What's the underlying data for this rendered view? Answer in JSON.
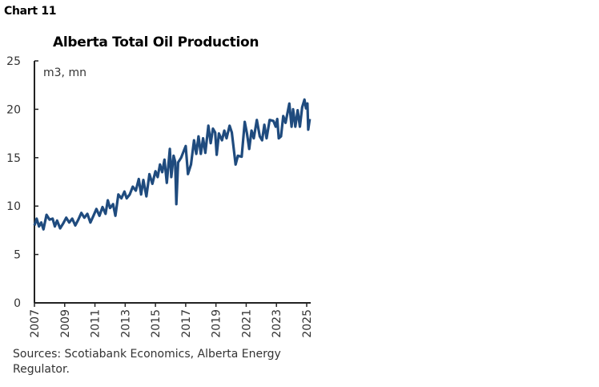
{
  "header": {
    "chart_label": "Chart 11"
  },
  "source": "Sources: Scotiabank Economics, Alberta Energy Regulator.",
  "colors": {
    "line": "#1f4b7e",
    "axis": "#222222"
  },
  "chart_data": {
    "type": "line",
    "title": "Alberta Total Oil Production",
    "unit_label": "m3, mn",
    "xlabel": "",
    "ylabel": "",
    "xlim": [
      2007,
      2025
    ],
    "ylim": [
      0,
      25
    ],
    "x_ticks": [
      "2007",
      "2009",
      "2011",
      "2013",
      "2015",
      "2017",
      "2019",
      "2021",
      "2023",
      "2025"
    ],
    "y_ticks": [
      "0",
      "5",
      "10",
      "15",
      "20",
      "25"
    ],
    "grid": false,
    "legend": "none",
    "series": [
      {
        "points": [
          [
            2007.0,
            8.0
          ],
          [
            2007.15,
            8.7
          ],
          [
            2007.3,
            7.9
          ],
          [
            2007.45,
            8.3
          ],
          [
            2007.6,
            7.6
          ],
          [
            2007.8,
            9.1
          ],
          [
            2008.0,
            8.6
          ],
          [
            2008.2,
            8.7
          ],
          [
            2008.35,
            7.9
          ],
          [
            2008.5,
            8.5
          ],
          [
            2008.7,
            7.7
          ],
          [
            2008.9,
            8.2
          ],
          [
            2009.1,
            8.8
          ],
          [
            2009.3,
            8.3
          ],
          [
            2009.5,
            8.7
          ],
          [
            2009.7,
            8.0
          ],
          [
            2009.9,
            8.6
          ],
          [
            2010.1,
            9.3
          ],
          [
            2010.3,
            8.8
          ],
          [
            2010.5,
            9.2
          ],
          [
            2010.7,
            8.3
          ],
          [
            2010.9,
            9.0
          ],
          [
            2011.1,
            9.7
          ],
          [
            2011.3,
            9.0
          ],
          [
            2011.5,
            9.9
          ],
          [
            2011.7,
            9.2
          ],
          [
            2011.85,
            10.6
          ],
          [
            2012.0,
            9.8
          ],
          [
            2012.2,
            10.2
          ],
          [
            2012.35,
            9.0
          ],
          [
            2012.55,
            11.2
          ],
          [
            2012.75,
            10.8
          ],
          [
            2012.95,
            11.5
          ],
          [
            2013.1,
            10.8
          ],
          [
            2013.3,
            11.2
          ],
          [
            2013.5,
            12.0
          ],
          [
            2013.7,
            11.6
          ],
          [
            2013.9,
            12.8
          ],
          [
            2014.05,
            11.2
          ],
          [
            2014.2,
            12.7
          ],
          [
            2014.4,
            11.0
          ],
          [
            2014.6,
            13.3
          ],
          [
            2014.8,
            12.3
          ],
          [
            2015.0,
            13.6
          ],
          [
            2015.15,
            13.0
          ],
          [
            2015.3,
            14.3
          ],
          [
            2015.45,
            13.5
          ],
          [
            2015.6,
            14.8
          ],
          [
            2015.75,
            12.4
          ],
          [
            2015.95,
            15.9
          ],
          [
            2016.05,
            13.0
          ],
          [
            2016.2,
            15.2
          ],
          [
            2016.3,
            14.6
          ],
          [
            2016.38,
            10.2
          ],
          [
            2016.5,
            14.5
          ],
          [
            2016.7,
            15.0
          ],
          [
            2016.9,
            15.8
          ],
          [
            2017.0,
            16.2
          ],
          [
            2017.15,
            13.3
          ],
          [
            2017.35,
            14.3
          ],
          [
            2017.55,
            16.8
          ],
          [
            2017.7,
            15.4
          ],
          [
            2017.85,
            17.2
          ],
          [
            2018.0,
            15.4
          ],
          [
            2018.15,
            17.0
          ],
          [
            2018.3,
            15.5
          ],
          [
            2018.5,
            18.3
          ],
          [
            2018.65,
            16.5
          ],
          [
            2018.8,
            18.0
          ],
          [
            2018.95,
            17.6
          ],
          [
            2019.05,
            15.3
          ],
          [
            2019.2,
            17.5
          ],
          [
            2019.4,
            16.8
          ],
          [
            2019.55,
            17.8
          ],
          [
            2019.7,
            17.0
          ],
          [
            2019.9,
            18.3
          ],
          [
            2020.05,
            17.6
          ],
          [
            2020.3,
            14.3
          ],
          [
            2020.45,
            15.2
          ],
          [
            2020.7,
            15.1
          ],
          [
            2020.9,
            18.7
          ],
          [
            2021.05,
            17.5
          ],
          [
            2021.2,
            15.9
          ],
          [
            2021.35,
            17.8
          ],
          [
            2021.5,
            17.0
          ],
          [
            2021.7,
            18.9
          ],
          [
            2021.9,
            17.2
          ],
          [
            2022.05,
            16.8
          ],
          [
            2022.2,
            18.4
          ],
          [
            2022.35,
            17.0
          ],
          [
            2022.55,
            18.9
          ],
          [
            2022.8,
            18.8
          ],
          [
            2022.95,
            18.2
          ],
          [
            2023.05,
            19.0
          ],
          [
            2023.15,
            17.0
          ],
          [
            2023.3,
            17.2
          ],
          [
            2023.45,
            19.3
          ],
          [
            2023.6,
            18.6
          ],
          [
            2023.85,
            20.6
          ],
          [
            2024.0,
            18.2
          ],
          [
            2024.1,
            20.0
          ],
          [
            2024.25,
            18.2
          ],
          [
            2024.4,
            19.9
          ],
          [
            2024.55,
            18.2
          ],
          [
            2024.7,
            20.2
          ],
          [
            2024.85,
            21.0
          ],
          [
            2024.95,
            20.1
          ],
          [
            2025.05,
            20.6
          ],
          [
            2025.1,
            17.9
          ],
          [
            2025.2,
            19.0
          ]
        ]
      }
    ]
  }
}
